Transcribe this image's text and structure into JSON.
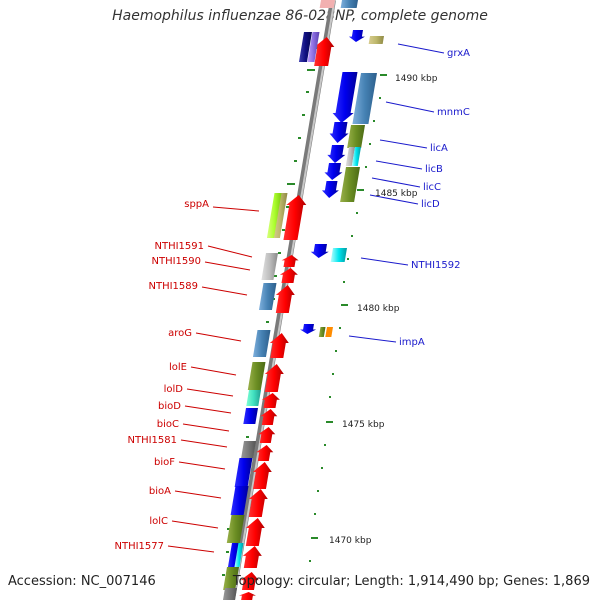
{
  "title": "Haemophilus influenzae 86-028NP, complete genome",
  "accession": "Accession: NC_007146",
  "summary": "Topology: circular; Length: 1,914,490 bp; Genes: 1,869",
  "left_strand_labels": [
    "sppA",
    "NTHI1591",
    "NTHI1590",
    "NTHI1589",
    "aroG",
    "lolE",
    "lolD",
    "bioD",
    "bioC",
    "NTHI1581",
    "bioF",
    "bioA",
    "lolC",
    "NTHI1577"
  ],
  "right_strand_labels": [
    "grxA",
    "mnmC",
    "licA",
    "licB",
    "licC",
    "licD",
    "NTHI1592",
    "impA"
  ],
  "scale_labels": [
    "1490 kbp",
    "1485 kbp",
    "1480 kbp",
    "1475 kbp",
    "1470 kbp"
  ],
  "colors": {
    "forward_gene": "#ff0000",
    "reverse_gene": "#1a1acc",
    "left_label": "#cc0000",
    "right_label": "#1a1acc",
    "backbone": "#888888",
    "scale_tick": "#228822"
  }
}
